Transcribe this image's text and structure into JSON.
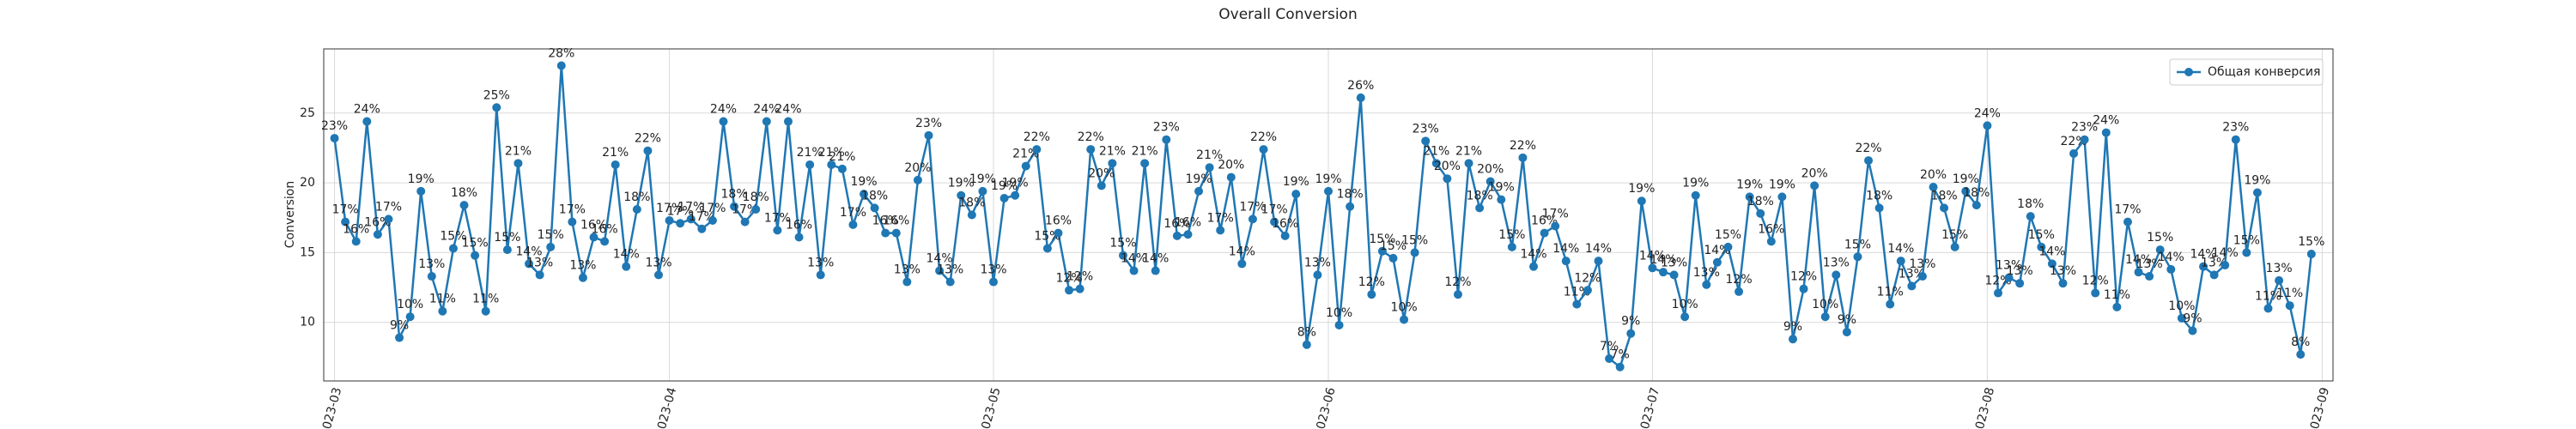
{
  "chart_data": {
    "type": "line",
    "title": "Overall Conversion",
    "y_label": "Conversion",
    "xlim": [
      -1,
      185
    ],
    "xticks": [
      {
        "value": 0,
        "label": "2023-03"
      },
      {
        "value": 31,
        "label": "2023-04"
      },
      {
        "value": 61,
        "label": "2023-05"
      },
      {
        "value": 92,
        "label": "2023-06"
      },
      {
        "value": 122,
        "label": "2023-07"
      },
      {
        "value": 153,
        "label": "2023-08"
      },
      {
        "value": 184,
        "label": "2023-09"
      }
    ],
    "ylim": [
      5.8,
      29.6
    ],
    "yticks": [
      10,
      15,
      20,
      25
    ],
    "grid": true,
    "legend": "upper right",
    "series": [
      {
        "name": "Общая конверсия",
        "color": "#1f77b4",
        "values": [
          23.2,
          17.2,
          15.8,
          24.4,
          16.3,
          17.4,
          8.9,
          10.4,
          19.4,
          13.3,
          10.8,
          15.3,
          18.4,
          14.8,
          10.8,
          25.4,
          15.2,
          21.4,
          14.2,
          13.4,
          15.4,
          28.4,
          17.2,
          13.2,
          16.1,
          15.8,
          21.3,
          14.0,
          18.1,
          22.3,
          13.4,
          17.3,
          17.1,
          17.4,
          16.7,
          17.3,
          24.4,
          18.3,
          17.2,
          18.1,
          24.4,
          16.6,
          24.4,
          16.1,
          21.3,
          13.4,
          21.3,
          21.0,
          17.0,
          19.2,
          18.2,
          16.4,
          16.4,
          12.9,
          20.2,
          23.4,
          13.7,
          12.9,
          19.1,
          17.7,
          19.4,
          12.9,
          18.9,
          19.1,
          21.2,
          22.4,
          15.3,
          16.4,
          12.3,
          12.4,
          22.4,
          19.8,
          21.4,
          14.8,
          13.7,
          21.4,
          13.7,
          23.1,
          16.2,
          16.3,
          19.4,
          21.1,
          16.6,
          20.4,
          14.2,
          17.4,
          22.4,
          17.2,
          16.2,
          19.2,
          8.4,
          13.4,
          19.4,
          9.8,
          18.3,
          26.1,
          12.0,
          15.1,
          14.6,
          10.2,
          15.0,
          23.0,
          21.4,
          20.3,
          12.0,
          21.4,
          18.2,
          20.1,
          18.8,
          15.4,
          21.8,
          14.0,
          16.4,
          16.9,
          14.4,
          11.3,
          12.3,
          14.4,
          7.4,
          6.8,
          9.2,
          18.7,
          13.9,
          13.6,
          13.4,
          10.4,
          19.1,
          12.7,
          14.3,
          15.4,
          12.2,
          19.0,
          17.8,
          15.8,
          19.0,
          8.8,
          12.4,
          19.8,
          10.4,
          13.4,
          9.3,
          14.7,
          21.6,
          18.2,
          11.3,
          14.4,
          12.6,
          13.3,
          19.7,
          18.2,
          15.4,
          19.4,
          18.4,
          24.1,
          12.1,
          13.2,
          12.8,
          17.6,
          15.4,
          14.2,
          12.8,
          22.1,
          23.1,
          12.1,
          23.6,
          11.1,
          17.2,
          13.6,
          13.3,
          15.2,
          13.8,
          10.3,
          9.4,
          14.0,
          13.4,
          14.1,
          23.1,
          15.0,
          19.3,
          11.0,
          13.0,
          11.2,
          7.7,
          14.9
        ],
        "value_labels": [
          "23%",
          "17%",
          "16%",
          "24%",
          "16%",
          "17%",
          "9%",
          "10%",
          "19%",
          "13%",
          "11%",
          "15%",
          "18%",
          "15%",
          "11%",
          "25%",
          "15%",
          "21%",
          "14%",
          "13%",
          "15%",
          "28%",
          "17%",
          "13%",
          "16%",
          "16%",
          "21%",
          "14%",
          "18%",
          "22%",
          "13%",
          "17%",
          "17%",
          "17%",
          "17%",
          "17%",
          "24%",
          "18%",
          "17%",
          "18%",
          "24%",
          "17%",
          "24%",
          "16%",
          "21%",
          "13%",
          "21%",
          "21%",
          "17%",
          "19%",
          "18%",
          "16%",
          "16%",
          "13%",
          "20%",
          "23%",
          "14%",
          "13%",
          "19%",
          "18%",
          "19%",
          "13%",
          "19%",
          "19%",
          "21%",
          "22%",
          "15%",
          "16%",
          "12%",
          "12%",
          "22%",
          "20%",
          "21%",
          "15%",
          "14%",
          "21%",
          "14%",
          "23%",
          "16%",
          "16%",
          "19%",
          "21%",
          "17%",
          "20%",
          "14%",
          "17%",
          "22%",
          "17%",
          "16%",
          "19%",
          "8%",
          "13%",
          "19%",
          "10%",
          "18%",
          "26%",
          "12%",
          "15%",
          "15%",
          "10%",
          "15%",
          "23%",
          "21%",
          "20%",
          "12%",
          "21%",
          "18%",
          "20%",
          "19%",
          "15%",
          "22%",
          "14%",
          "16%",
          "17%",
          "14%",
          "11%",
          "12%",
          "14%",
          "7%",
          "7%",
          "9%",
          "19%",
          "14%",
          "14%",
          "13%",
          "10%",
          "19%",
          "13%",
          "14%",
          "15%",
          "12%",
          "19%",
          "18%",
          "16%",
          "19%",
          "9%",
          "12%",
          "20%",
          "10%",
          "13%",
          "9%",
          "15%",
          "22%",
          "18%",
          "11%",
          "14%",
          "13%",
          "13%",
          "20%",
          "18%",
          "15%",
          "19%",
          "18%",
          "24%",
          "12%",
          "13%",
          "13%",
          "18%",
          "15%",
          "14%",
          "13%",
          "22%",
          "23%",
          "12%",
          "24%",
          "11%",
          "17%",
          "14%",
          "13%",
          "15%",
          "14%",
          "10%",
          "9%",
          "14%",
          "13%",
          "14%",
          "23%",
          "15%",
          "19%",
          "11%",
          "13%",
          "11%",
          "8%",
          "15%"
        ]
      }
    ]
  }
}
